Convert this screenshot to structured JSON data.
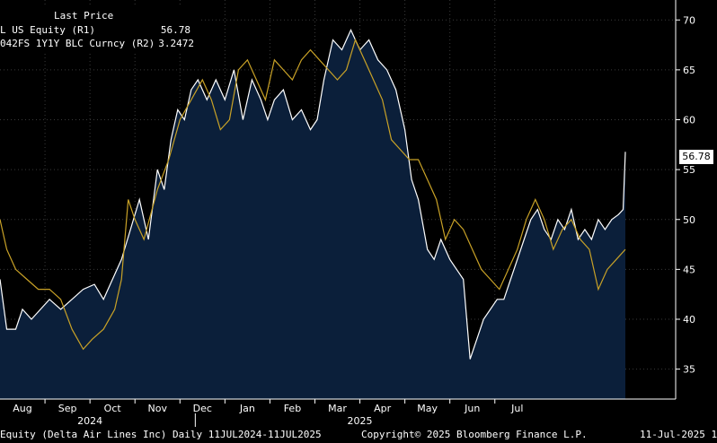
{
  "chart_data": {
    "type": "line",
    "legend_header": "Last Price",
    "series": [
      {
        "name": "L US Equity  (R1)",
        "last_value_label": "56.78",
        "color": "#ffffff",
        "fill": "#0b1f3a",
        "points": [
          [
            0,
            44
          ],
          [
            0.15,
            39
          ],
          [
            0.35,
            39
          ],
          [
            0.5,
            41
          ],
          [
            0.7,
            40
          ],
          [
            0.9,
            41
          ],
          [
            1.1,
            42
          ],
          [
            1.35,
            41
          ],
          [
            1.6,
            42
          ],
          [
            1.85,
            43
          ],
          [
            2.1,
            43.5
          ],
          [
            2.3,
            42
          ],
          [
            2.5,
            44
          ],
          [
            2.7,
            46
          ],
          [
            2.9,
            49
          ],
          [
            3.1,
            52
          ],
          [
            3.3,
            48
          ],
          [
            3.5,
            55
          ],
          [
            3.65,
            53
          ],
          [
            3.8,
            58
          ],
          [
            3.95,
            61
          ],
          [
            4.1,
            60
          ],
          [
            4.25,
            63
          ],
          [
            4.4,
            64
          ],
          [
            4.6,
            62
          ],
          [
            4.8,
            64
          ],
          [
            5.0,
            62
          ],
          [
            5.2,
            65
          ],
          [
            5.4,
            60
          ],
          [
            5.6,
            64
          ],
          [
            5.8,
            62
          ],
          [
            5.95,
            60
          ],
          [
            6.1,
            62
          ],
          [
            6.3,
            63
          ],
          [
            6.5,
            60
          ],
          [
            6.7,
            61
          ],
          [
            6.9,
            59
          ],
          [
            7.05,
            60
          ],
          [
            7.2,
            64
          ],
          [
            7.4,
            68
          ],
          [
            7.6,
            67
          ],
          [
            7.8,
            69
          ],
          [
            8.0,
            67
          ],
          [
            8.2,
            68
          ],
          [
            8.4,
            66
          ],
          [
            8.6,
            65
          ],
          [
            8.8,
            63
          ],
          [
            9.0,
            59
          ],
          [
            9.15,
            54
          ],
          [
            9.3,
            52
          ],
          [
            9.5,
            47
          ],
          [
            9.65,
            46
          ],
          [
            9.8,
            48
          ],
          [
            10.0,
            46
          ],
          [
            10.15,
            45
          ],
          [
            10.3,
            44
          ],
          [
            10.45,
            36
          ],
          [
            10.6,
            38
          ],
          [
            10.75,
            40
          ],
          [
            10.9,
            41
          ],
          [
            11.05,
            42
          ],
          [
            11.2,
            42
          ],
          [
            11.35,
            44
          ],
          [
            11.5,
            46
          ],
          [
            11.65,
            48
          ],
          [
            11.8,
            50
          ],
          [
            11.95,
            51
          ],
          [
            12.1,
            49
          ],
          [
            12.25,
            48
          ],
          [
            12.4,
            50
          ],
          [
            12.55,
            49
          ],
          [
            12.7,
            51
          ],
          [
            12.85,
            48
          ],
          [
            13.0,
            49
          ],
          [
            13.15,
            48
          ],
          [
            13.3,
            50
          ],
          [
            13.45,
            49
          ],
          [
            13.6,
            50
          ],
          [
            13.75,
            50.5
          ],
          [
            13.85,
            51
          ],
          [
            13.9,
            56.78
          ]
        ]
      },
      {
        "name": "042FS 1Y1Y BLC Curncy  (R2)",
        "last_value_label": "3.2472",
        "color": "#c9a227",
        "points": [
          [
            0,
            50
          ],
          [
            0.15,
            47
          ],
          [
            0.35,
            45
          ],
          [
            0.6,
            44
          ],
          [
            0.85,
            43
          ],
          [
            1.1,
            43
          ],
          [
            1.35,
            42
          ],
          [
            1.6,
            39
          ],
          [
            1.85,
            37
          ],
          [
            2.05,
            38
          ],
          [
            2.3,
            39
          ],
          [
            2.55,
            41
          ],
          [
            2.7,
            44
          ],
          [
            2.85,
            52
          ],
          [
            3.0,
            50
          ],
          [
            3.2,
            48
          ],
          [
            3.5,
            53
          ],
          [
            3.75,
            56
          ],
          [
            4.0,
            60
          ],
          [
            4.25,
            62
          ],
          [
            4.5,
            64
          ],
          [
            4.7,
            62
          ],
          [
            4.9,
            59
          ],
          [
            5.1,
            60
          ],
          [
            5.3,
            65
          ],
          [
            5.5,
            66
          ],
          [
            5.7,
            64
          ],
          [
            5.9,
            62
          ],
          [
            6.1,
            66
          ],
          [
            6.3,
            65
          ],
          [
            6.5,
            64
          ],
          [
            6.7,
            66
          ],
          [
            6.9,
            67
          ],
          [
            7.1,
            66
          ],
          [
            7.3,
            65
          ],
          [
            7.5,
            64
          ],
          [
            7.7,
            65
          ],
          [
            7.9,
            68
          ],
          [
            8.1,
            66
          ],
          [
            8.3,
            64
          ],
          [
            8.5,
            62
          ],
          [
            8.7,
            58
          ],
          [
            8.9,
            57
          ],
          [
            9.1,
            56
          ],
          [
            9.3,
            56
          ],
          [
            9.5,
            54
          ],
          [
            9.7,
            52
          ],
          [
            9.9,
            48
          ],
          [
            10.1,
            50
          ],
          [
            10.3,
            49
          ],
          [
            10.5,
            47
          ],
          [
            10.7,
            45
          ],
          [
            10.9,
            44
          ],
          [
            11.1,
            43
          ],
          [
            11.3,
            45
          ],
          [
            11.5,
            47
          ],
          [
            11.7,
            50
          ],
          [
            11.9,
            52
          ],
          [
            12.1,
            50
          ],
          [
            12.3,
            47
          ],
          [
            12.5,
            49
          ],
          [
            12.7,
            50
          ],
          [
            12.9,
            48
          ],
          [
            13.1,
            47
          ],
          [
            13.3,
            43
          ],
          [
            13.5,
            45
          ],
          [
            13.7,
            46
          ],
          [
            13.9,
            47
          ]
        ]
      }
    ],
    "x_months": [
      "Aug",
      "Sep",
      "Oct",
      "Nov",
      "Dec",
      "Jan",
      "Feb",
      "Mar",
      "Apr",
      "May",
      "Jun",
      "Jul"
    ],
    "x_years": [
      "2024",
      "2025"
    ],
    "y_ticks": [
      "35",
      "40",
      "45",
      "50",
      "55",
      "60",
      "65",
      "70"
    ],
    "ylim": [
      32,
      72
    ],
    "xlim": [
      0,
      14.5
    ]
  },
  "footer": {
    "left": "Equity (Delta Air Lines Inc)  Daily 11JUL2024-11JUL2025",
    "center": "Copyright© 2025 Bloomberg Finance L.P.",
    "right": "11-Jul-2025 1"
  }
}
